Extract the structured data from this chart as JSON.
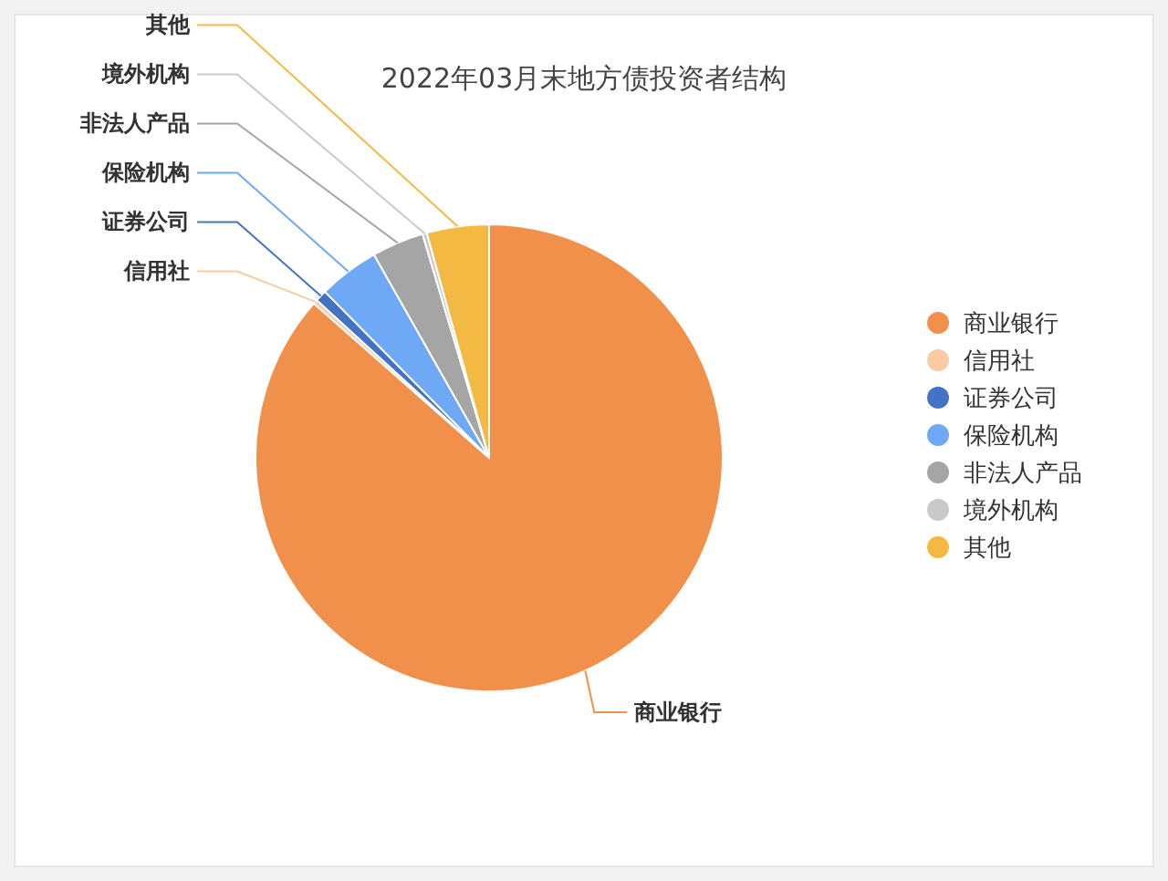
{
  "chart_data": {
    "type": "pie",
    "title": "2022年03月末地方债投资者结构",
    "categories": [
      "商业银行",
      "信用社",
      "证券公司",
      "保险机构",
      "非法人产品",
      "境外机构",
      "其他"
    ],
    "values": [
      86.5,
      0.3,
      0.8,
      4.2,
      3.6,
      0.3,
      4.3
    ],
    "colors": [
      "#f0904a",
      "#f8cba5",
      "#4472c4",
      "#6fa8f5",
      "#a5a5a5",
      "#c9c9c9",
      "#f4b942"
    ],
    "legend": "right"
  }
}
